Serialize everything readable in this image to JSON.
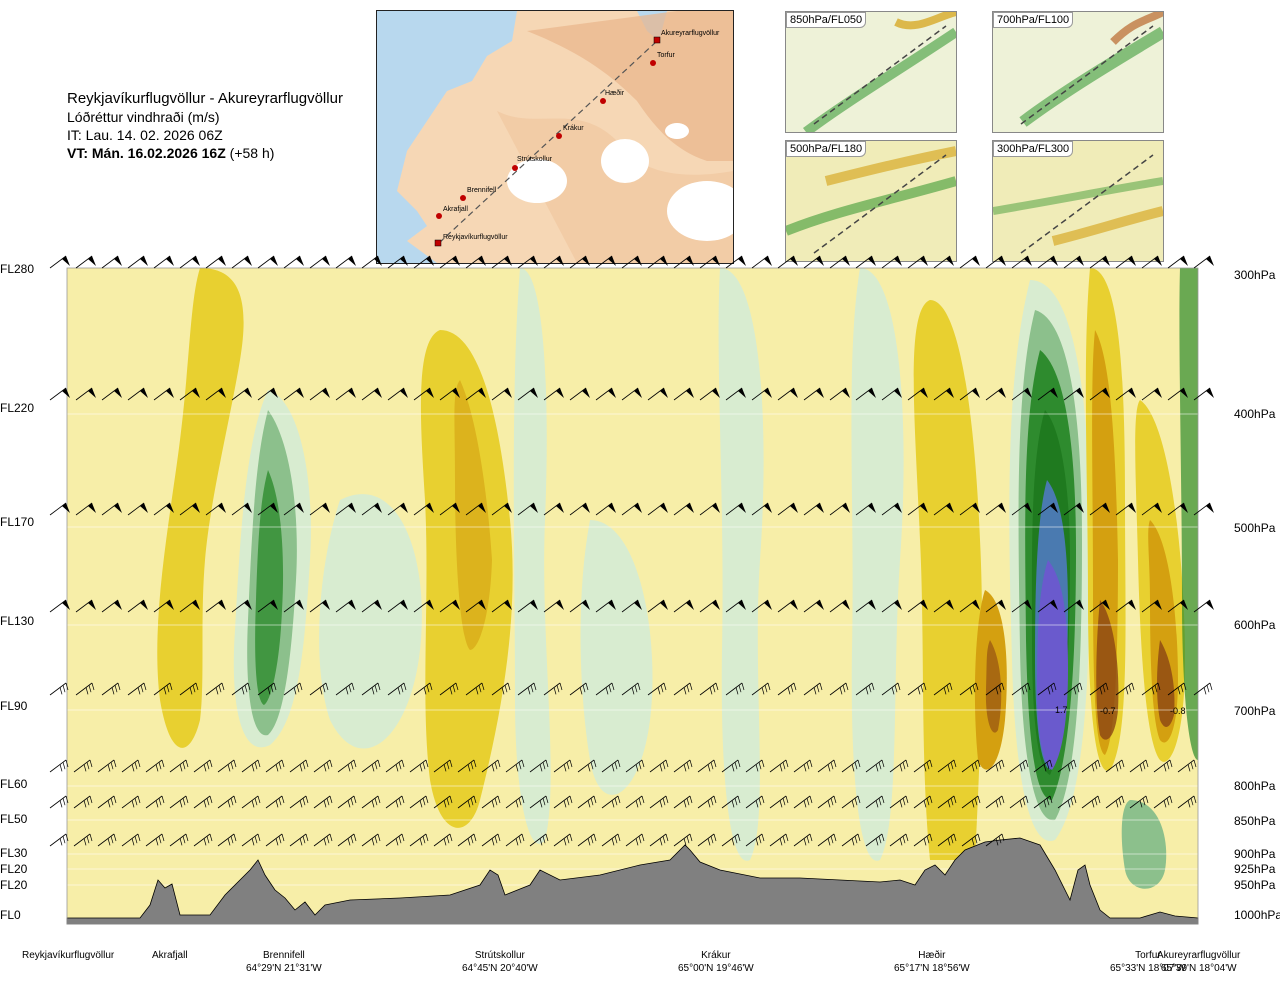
{
  "title": {
    "route": "Reykjavíkurflugvöllur - Akureyrarflugvöllur",
    "variable": "Lóðréttur vindhraði (m/s)",
    "issue_time": "IT: Lau. 14. 02. 2026 06Z",
    "valid_lead": "VT:",
    "valid_time": "Mán. 16.02.2026 16Z",
    "valid_offset": "(+58 h)"
  },
  "route_map": {
    "waypoints": [
      "Akureyrarflugvöllur",
      "Torfur",
      "Hæðir",
      "Krákur",
      "Strútskollur",
      "Brennifell",
      "Akrafjall",
      "Reykjavíkurflugvöllur"
    ]
  },
  "thumbnails": [
    {
      "label": "850hPa/FL050"
    },
    {
      "label": "700hPa/FL100"
    },
    {
      "label": "500hPa/FL180"
    },
    {
      "label": "300hPa/FL300"
    }
  ],
  "levels": {
    "flight_levels": [
      "FL280",
      "FL220",
      "FL170",
      "FL130",
      "FL90",
      "FL60",
      "FL50",
      "FL30",
      "FL20",
      "FL20",
      "FL0"
    ],
    "pressure_levels": [
      "300hPa",
      "400hPa",
      "500hPa",
      "600hPa",
      "700hPa",
      "800hPa",
      "850hPa",
      "900hPa",
      "925hPa",
      "950hPa",
      "1000hPa"
    ]
  },
  "value_labels": [
    "1.7",
    "-0.7",
    "-0.8"
  ],
  "locations": [
    {
      "name": "Reykjavíkurflugvöllur",
      "coord": ""
    },
    {
      "name": "Akrafjall",
      "coord": ""
    },
    {
      "name": "Brennifell",
      "coord": "64°29'N 21°31'W"
    },
    {
      "name": "Strútskollur",
      "coord": "64°45'N 20°40'W"
    },
    {
      "name": "Krákur",
      "coord": "65°00'N 19°46'W"
    },
    {
      "name": "Hæðir",
      "coord": "65°17'N 18°56'W"
    },
    {
      "name": "Torfur",
      "coord": "65°33'N 18°07'W"
    },
    {
      "name": "Akureyrarflugvöllur",
      "coord": "65°39'N 18°04'W"
    }
  ],
  "colors": {
    "weak_sink": "#f7eea8",
    "sink": "#e8d030",
    "strong_sink": "#d48a10",
    "strongest_sink": "#8b4513",
    "weak_lift": "#d8ecd0",
    "lift": "#8cc08c",
    "strong_lift": "#2e8b2e",
    "strongest_lift": "#6a5acd",
    "terrain": "#808080"
  }
}
